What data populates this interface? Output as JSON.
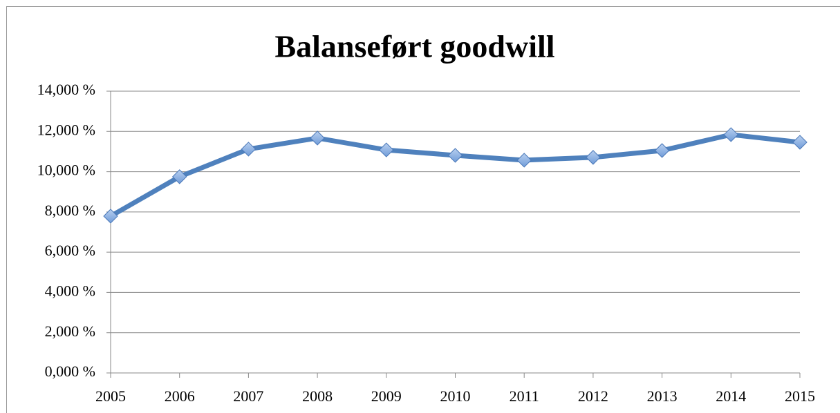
{
  "chart_data": {
    "type": "line",
    "title": "Balanseført goodwill",
    "categories": [
      "2005",
      "2006",
      "2007",
      "2008",
      "2009",
      "2010",
      "2011",
      "2012",
      "2013",
      "2014",
      "2015"
    ],
    "series": [
      {
        "color": "#4f81bd",
        "values": [
          7.79,
          9.75,
          11.12,
          11.67,
          11.08,
          10.81,
          10.57,
          10.71,
          11.05,
          11.84,
          11.46
        ]
      }
    ],
    "ylim": [
      0,
      14
    ],
    "yticks": [
      {
        "value": 0,
        "label": "0,000 %"
      },
      {
        "value": 2,
        "label": "2,000 %"
      },
      {
        "value": 4,
        "label": "4,000 %"
      },
      {
        "value": 6,
        "label": "6,000 %"
      },
      {
        "value": 8,
        "label": "8,000 %"
      },
      {
        "value": 10,
        "label": "10,000 %"
      },
      {
        "value": 12,
        "label": "12,000 %"
      },
      {
        "value": 14,
        "label": "14,000 %"
      }
    ],
    "grid": true
  }
}
